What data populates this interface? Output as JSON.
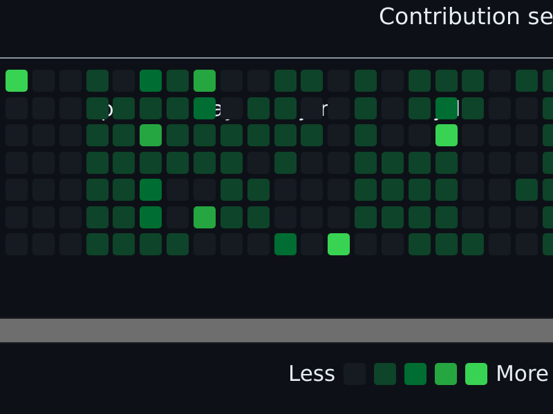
{
  "header": {
    "settings_label": "Contribution settings"
  },
  "legend": {
    "less_label": "Less",
    "more_label": "More",
    "levels": [
      0,
      1,
      2,
      3,
      4
    ]
  },
  "colors": {
    "level_0": "#161b22",
    "level_1": "#0e4429",
    "level_2": "#006d32",
    "level_3": "#26a641",
    "level_4": "#39d353"
  },
  "months": [
    {
      "label": "Apr",
      "week": 3
    },
    {
      "label": "May",
      "week": 7
    },
    {
      "label": "Jun",
      "week": 11
    },
    {
      "label": "Jul",
      "week": 16
    },
    {
      "label": "Aug",
      "week": 20
    }
  ],
  "weeks": [
    [
      4,
      0,
      0,
      0,
      0,
      0,
      0
    ],
    [
      0,
      0,
      0,
      0,
      0,
      0,
      0
    ],
    [
      0,
      0,
      0,
      0,
      0,
      0,
      0
    ],
    [
      1,
      1,
      1,
      1,
      1,
      1,
      1
    ],
    [
      0,
      1,
      1,
      1,
      1,
      1,
      1
    ],
    [
      2,
      1,
      3,
      1,
      2,
      2,
      1
    ],
    [
      1,
      1,
      1,
      1,
      0,
      0,
      1
    ],
    [
      3,
      2,
      1,
      1,
      0,
      3,
      0
    ],
    [
      0,
      0,
      1,
      1,
      1,
      1,
      0
    ],
    [
      0,
      1,
      1,
      0,
      1,
      1,
      0
    ],
    [
      1,
      1,
      1,
      1,
      0,
      0,
      2
    ],
    [
      1,
      0,
      1,
      0,
      0,
      0,
      0
    ],
    [
      0,
      0,
      0,
      0,
      0,
      0,
      4
    ],
    [
      1,
      1,
      1,
      1,
      1,
      1,
      0
    ],
    [
      0,
      0,
      0,
      1,
      1,
      1,
      0
    ],
    [
      1,
      1,
      0,
      1,
      1,
      1,
      1
    ],
    [
      1,
      2,
      4,
      1,
      1,
      1,
      1
    ],
    [
      1,
      1,
      0,
      0,
      0,
      0,
      1
    ],
    [
      0,
      0,
      0,
      0,
      0,
      0,
      0
    ],
    [
      1,
      0,
      0,
      0,
      1,
      0,
      0
    ],
    [
      1,
      1,
      1,
      1,
      1,
      1,
      1
    ]
  ]
}
